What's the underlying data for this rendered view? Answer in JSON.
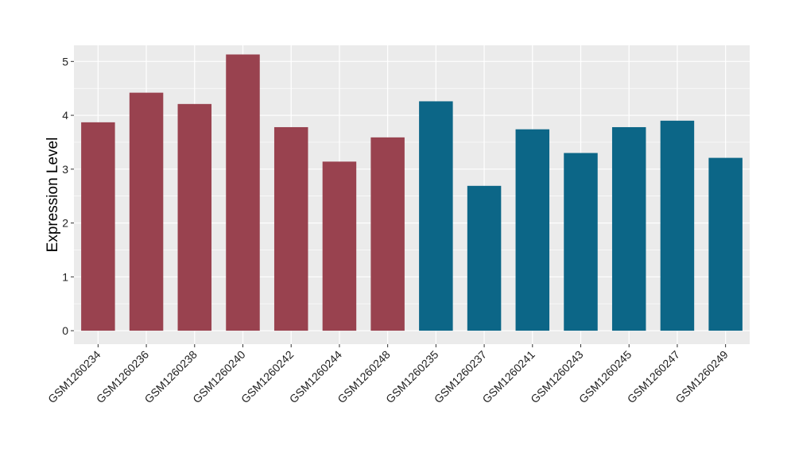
{
  "chart_data": {
    "type": "bar",
    "ylabel": "Expression Level",
    "xlabel": "",
    "ylim": [
      -0.25,
      5.3
    ],
    "y_ticks": [
      "0",
      "1",
      "2",
      "3",
      "4",
      "5"
    ],
    "grid": true,
    "legend": "none",
    "background": "#ebebeb",
    "gridline_color": "#ffffff",
    "categories": [
      "GSM1260234",
      "GSM1260236",
      "GSM1260238",
      "GSM1260240",
      "GSM1260242",
      "GSM1260244",
      "GSM1260248",
      "GSM1260235",
      "GSM1260237",
      "GSM1260241",
      "GSM1260243",
      "GSM1260245",
      "GSM1260247",
      "GSM1260249"
    ],
    "values": [
      3.87,
      4.42,
      4.21,
      5.13,
      3.78,
      3.14,
      3.59,
      4.26,
      2.69,
      3.74,
      3.3,
      3.78,
      3.9,
      3.21
    ],
    "colors": [
      "#99424f",
      "#99424f",
      "#99424f",
      "#99424f",
      "#99424f",
      "#99424f",
      "#99424f",
      "#0c6687",
      "#0c6687",
      "#0c6687",
      "#0c6687",
      "#0c6687",
      "#0c6687",
      "#0c6687"
    ]
  }
}
